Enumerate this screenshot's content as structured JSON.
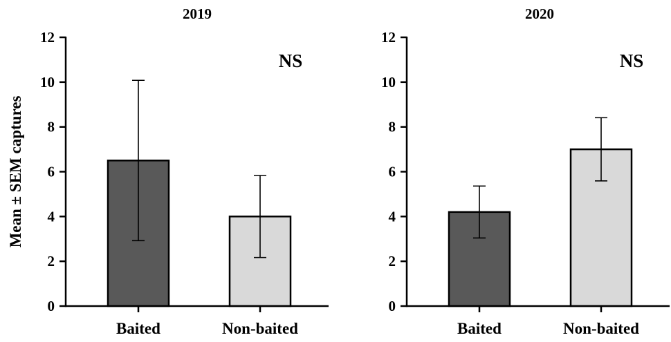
{
  "chart_data": [
    {
      "type": "bar",
      "title": "2019",
      "ylabel": "Mean ± SEM captures",
      "categories": [
        "Baited",
        "Non-baited"
      ],
      "values": [
        6.5,
        4.0
      ],
      "errors": [
        [
          2.92,
          10.08
        ],
        [
          2.17,
          5.83
        ]
      ],
      "bar_colors": [
        "#595959",
        "#d9d9d9"
      ],
      "ylim": [
        0,
        12
      ],
      "yticks": [
        "0",
        "2",
        "4",
        "6",
        "8",
        "10",
        "12"
      ],
      "annotation": "NS",
      "grid": false
    },
    {
      "type": "bar",
      "title": "2020",
      "ylabel": "",
      "categories": [
        "Baited",
        "Non-baited"
      ],
      "values": [
        4.2,
        7.0
      ],
      "errors": [
        [
          3.04,
          5.36
        ],
        [
          5.59,
          8.41
        ]
      ],
      "bar_colors": [
        "#595959",
        "#d9d9d9"
      ],
      "ylim": [
        0,
        12
      ],
      "yticks": [
        "0",
        "2",
        "4",
        "6",
        "8",
        "10",
        "12"
      ],
      "annotation": "NS",
      "grid": false
    }
  ]
}
